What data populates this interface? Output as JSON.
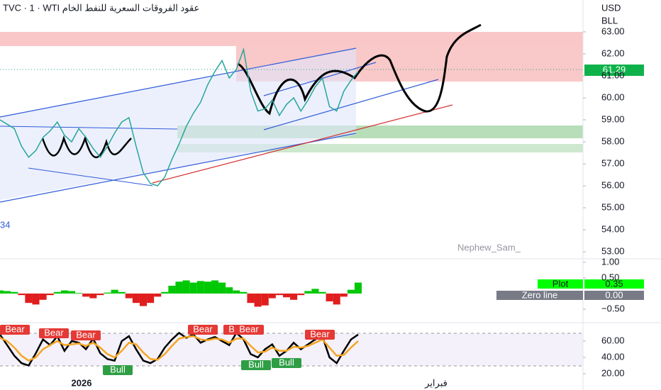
{
  "chart_data": [
    {
      "type": "line",
      "title": "TVC · 1 · WTI عقود الفروقات السعرية للنفط الخام",
      "currency": "USD",
      "unit": "BLL",
      "price_label": "61.29",
      "left_label": "34",
      "watermark": "Nephew_Sam_",
      "time_labels": [
        "2026",
        "فبراير"
      ],
      "series": [
        {
          "color": "#26a69a",
          "values": [
            59.0,
            58.8,
            58.6,
            57.8,
            57.3,
            57.6,
            58.2,
            58.5,
            58.9,
            58.3,
            58.0,
            58.6,
            58.2,
            57.7,
            57.3,
            57.8,
            58.4,
            58.9,
            59.1,
            57.8,
            56.6,
            56.1,
            56.0,
            56.4,
            57.2,
            57.9,
            58.7,
            59.3,
            59.8,
            60.6,
            61.2,
            61.7,
            60.9,
            61.3,
            62.2,
            60.3,
            59.4,
            59.5,
            59.9,
            59.2,
            59.7,
            60.0,
            59.4,
            59.9,
            60.5,
            60.9,
            59.6,
            59.4,
            60.3,
            60.8,
            61.2
          ]
        }
      ],
      "ylim": [
        52.68,
        64.45
      ],
      "yticks": [
        {
          "value": 63,
          "label": "63.00"
        },
        {
          "value": 62,
          "label": "62.00"
        },
        {
          "value": 61,
          "label": "61.00"
        },
        {
          "value": 60,
          "label": "60.00"
        },
        {
          "value": 59,
          "label": "59.00"
        },
        {
          "value": 58,
          "label": "58.00"
        },
        {
          "value": 57,
          "label": "57.00"
        },
        {
          "value": 56,
          "label": "56.00"
        },
        {
          "value": 55,
          "label": "55.00"
        },
        {
          "value": 54,
          "label": "54.00"
        },
        {
          "value": 53,
          "label": "53.00"
        }
      ]
    },
    {
      "type": "bar",
      "zero_line_name": "Zero line",
      "zero_line_label": "0.00",
      "last_label": "0.35",
      "up_color": "#00c805",
      "down_color": "#e01e1e",
      "series": [
        {
          "name": "Plot",
          "color": "#00ff00",
          "values": [
            0.1,
            0.08,
            0.05,
            -0.05,
            -0.3,
            -0.35,
            -0.2,
            -0.05,
            0.05,
            0.1,
            0.08,
            0.02,
            -0.1,
            -0.15,
            -0.05,
            0.03,
            0.12,
            0.05,
            -0.15,
            -0.3,
            -0.4,
            -0.3,
            -0.1,
            0.05,
            0.25,
            0.38,
            0.42,
            0.35,
            0.4,
            0.38,
            0.42,
            0.35,
            0.2,
            0.1,
            0.05,
            -0.3,
            -0.42,
            -0.38,
            -0.15,
            -0.05,
            -0.12,
            -0.2,
            -0.05,
            0.08,
            0.15,
            0.05,
            -0.25,
            -0.35,
            -0.1,
            0.12,
            0.35
          ]
        }
      ],
      "ylim": [
        -0.93,
        1.11
      ],
      "yticks": [
        {
          "value": 1,
          "label": "1.00"
        },
        {
          "value": 0.5,
          "label": "0.50"
        },
        {
          "value": -0.5,
          "label": "−0.50"
        }
      ]
    },
    {
      "type": "line",
      "signals": [
        "Bear",
        "Bear",
        "Bear",
        "Bear",
        "Bear",
        "Bear",
        "Bear",
        "Bull",
        "Bull",
        "Bull"
      ],
      "series": [
        {
          "color": "#000000",
          "values": [
            68,
            55,
            42,
            33,
            30,
            45,
            62,
            55,
            66,
            48,
            60,
            58,
            50,
            63,
            45,
            38,
            36,
            60,
            66,
            50,
            36,
            33,
            38,
            52,
            62,
            70,
            64,
            68,
            58,
            62,
            65,
            60,
            55,
            70,
            62,
            44,
            40,
            50,
            56,
            42,
            48,
            58,
            50,
            56,
            62,
            66,
            40,
            33,
            48,
            62,
            68
          ]
        },
        {
          "color": "#f5a623",
          "values": [
            64,
            60,
            52,
            42,
            36,
            40,
            50,
            55,
            60,
            55,
            56,
            57,
            54,
            58,
            52,
            44,
            40,
            48,
            58,
            56,
            46,
            38,
            37,
            44,
            54,
            63,
            65,
            66,
            62,
            61,
            63,
            62,
            58,
            63,
            63,
            54,
            46,
            47,
            52,
            48,
            48,
            53,
            52,
            54,
            58,
            62,
            52,
            42,
            43,
            52,
            60
          ]
        }
      ],
      "ylim": [
        8.7,
        82.6
      ],
      "yticks": [
        {
          "value": 60,
          "label": "60.00"
        },
        {
          "value": 40,
          "label": "40.00"
        },
        {
          "value": 20,
          "label": "20.00"
        }
      ]
    }
  ]
}
